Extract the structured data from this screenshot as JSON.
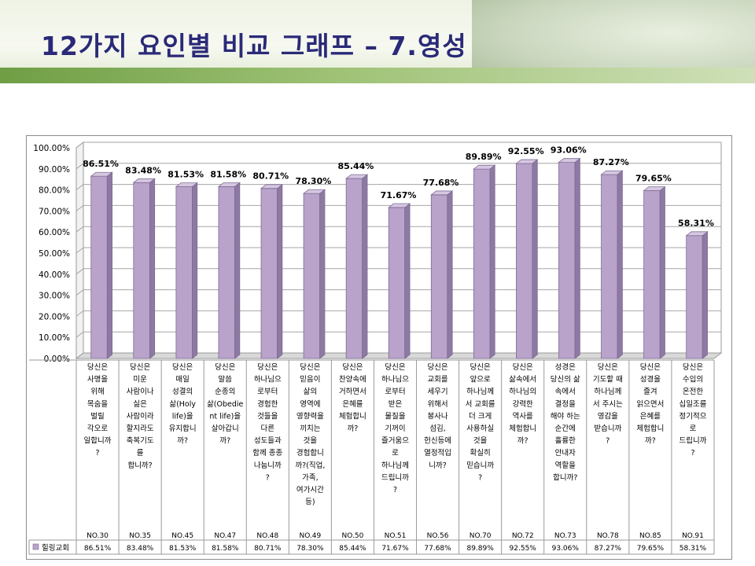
{
  "slide": {
    "title": "12가지 요인별 비교 그래프 – 7.영성"
  },
  "colors": {
    "bar_front": "#b9a3cb",
    "bar_side": "#8d7aa3",
    "bar_top": "#d6c8e1",
    "title": "#2a2a78",
    "header_green": "#6f9e45"
  },
  "chart_data": {
    "type": "bar",
    "ylim": [
      0,
      100
    ],
    "y_ticks": [
      "0.00%",
      "10.00%",
      "20.00%",
      "30.00%",
      "40.00%",
      "50.00%",
      "60.00%",
      "70.00%",
      "80.00%",
      "90.00%",
      "100.00%"
    ],
    "grid": true,
    "legend": "bottom-left (data table)",
    "categories": [
      "당신은 사명을 위해 목숨을 벌릴 각오로 일합니까?",
      "당신은 미운 사람이나 싫은 사람이라도 축복기도를 합니까?",
      "당신은 매일 성결의 삶(Holy life)을 유지합니까?",
      "당신은 말씀 순종의 삶(Obedient life)을 살아갑니까?",
      "당신은 하나님으로부터 경험한 것들을 다른 성도들과 함께 종종 나눕니까?",
      "당신은 믿음이 삶의 영역에 영향력을 끼치는 것을 경험합니까?(직업, 가족, 여가시간 등)",
      "당신은 찬양속에 거하면서 은혜를 체험합니까?",
      "당신은 하나님으로부터 받은 물질을 기꺼이 즐거움으로 하나님께 드립니까?",
      "당신은 교회를 세우기 위해서 봉사나 섬김, 헌신등에 열정적입니까?",
      "당신은 앞으로 하나님께서 교회를 더 크게 사용하실 것을 확실히 믿습니까?",
      "당신은 삶속에서 하나님의 강력한 역사를 체험합니까?",
      "성경은 당신의 삶 속에서 결정을 해야 하는 순간에 훌륭한 안내자 역할을 합니까?",
      "당신은 기도할 때 하나님께서 주시는 영감을 받습니까?",
      "당신은 성경을 즐겨 읽으면서 은혜를 체험합니까?",
      "당신은 수입의 온전한 십일조를 정기적으로 드립니까?"
    ],
    "category_lines": [
      [
        "당신은",
        "사명을",
        "위해",
        "목숨을",
        "벌릴",
        "각오로",
        "일합니까",
        "?"
      ],
      [
        "당신은",
        "미운",
        "사람이나",
        "싫은",
        "사람이라",
        "할지라도",
        "축복기도",
        "를",
        "합니까?"
      ],
      [
        "당신은",
        "매일",
        "성결의",
        "삶(Holy",
        "life)을",
        "유지합니",
        "까?"
      ],
      [
        "당신은",
        "말씀",
        "순종의",
        "삶(Obedie",
        "nt life)을",
        "살아갑니",
        "까?"
      ],
      [
        "당신은",
        "하나님으",
        "로부터",
        "경험한",
        "것들을",
        "다른",
        "성도들과",
        "함께 종종",
        "나눕니까",
        "?"
      ],
      [
        "당신은",
        "믿음이",
        "삶의",
        "영역에",
        "영향력을",
        "끼치는",
        "것을",
        "경험합니",
        "까?(직업,",
        "가족,",
        "여가시간",
        "등)"
      ],
      [
        "당신은",
        "찬양속에",
        "거하면서",
        "은혜를",
        "체험합니",
        "까?"
      ],
      [
        "당신은",
        "하나님으",
        "로부터",
        "받은",
        "물질을",
        "기꺼이",
        "즐거움으",
        "로",
        "하나님께",
        "드립니까",
        "?"
      ],
      [
        "당신은",
        "교회를",
        "세우기",
        "위해서",
        "봉사나",
        "섬김,",
        "헌신등에",
        "열정적입",
        "니까?"
      ],
      [
        "당신은",
        "앞으로",
        "하나님께",
        "서 교회를",
        "더 크게",
        "사용하실",
        "것을",
        "확실히",
        "믿습니까",
        "?"
      ],
      [
        "당신은",
        "삶속에서",
        "하나님의",
        "강력한",
        "역사를",
        "체험합니",
        "까?"
      ],
      [
        "성경은",
        "당신의 삶",
        "속에서",
        "결정을",
        "해야 하는",
        "순간에",
        "훌륭한",
        "안내자",
        "역할을",
        "합니까?"
      ],
      [
        "당신은",
        "기도할 때",
        "하나님께",
        "서 주시는",
        "영감을",
        "받습니까",
        "?"
      ],
      [
        "당신은",
        "성경을",
        "즐겨",
        "읽으면서",
        "은혜를",
        "체험합니",
        "까?"
      ],
      [
        "당신은",
        "수입의",
        "온전한",
        "십일조를",
        "정기적으",
        "로",
        "드립니까",
        "?"
      ]
    ],
    "question_numbers": [
      "NO.30",
      "NO.35",
      "NO.45",
      "NO.47",
      "NO.48",
      "NO.49",
      "NO.50",
      "NO.51",
      "NO.56",
      "NO.70",
      "NO.72",
      "NO.73",
      "NO.78",
      "NO.85",
      "NO.91"
    ],
    "series": [
      {
        "name": "힐링교회",
        "values": [
          86.51,
          83.48,
          81.53,
          81.58,
          80.71,
          78.3,
          85.44,
          71.67,
          77.68,
          89.89,
          92.55,
          93.06,
          87.27,
          79.65,
          58.31
        ],
        "labels": [
          "86.51%",
          "83.48%",
          "81.53%",
          "81.58%",
          "80.71%",
          "78.30%",
          "85.44%",
          "71.67%",
          "77.68%",
          "89.89%",
          "92.55%",
          "93.06%",
          "87.27%",
          "79.65%",
          "58.31%"
        ]
      }
    ]
  }
}
